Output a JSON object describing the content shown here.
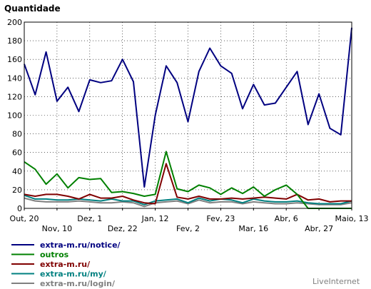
{
  "chart_data": {
    "type": "line",
    "title": "Quantidade",
    "ylim": [
      0,
      200
    ],
    "yticks": [
      0,
      20,
      40,
      60,
      80,
      100,
      120,
      140,
      160,
      180,
      200
    ],
    "grid": true,
    "x_tick_labels": [
      {
        "index": 0,
        "label": "Out, 20"
      },
      {
        "index": 3,
        "label": "Nov, 10"
      },
      {
        "index": 6,
        "label": "Dez, 1"
      },
      {
        "index": 9,
        "label": "Dez, 22"
      },
      {
        "index": 12,
        "label": "Jan, 12"
      },
      {
        "index": 15,
        "label": "Fev, 2"
      },
      {
        "index": 18,
        "label": "Fev, 23"
      },
      {
        "index": 21,
        "label": "Mar, 16"
      },
      {
        "index": 24,
        "label": "Abr, 6"
      },
      {
        "index": 27,
        "label": "Abr, 27"
      },
      {
        "index": 30,
        "label": "Maio, 13"
      }
    ],
    "n_points": 31,
    "series": [
      {
        "name": "extra-m.ru/notice/",
        "color": "#000080",
        "values": [
          155,
          122,
          168,
          115,
          130,
          104,
          138,
          135,
          137,
          160,
          136,
          23,
          100,
          153,
          135,
          93,
          147,
          172,
          153,
          145,
          107,
          133,
          111,
          113,
          130,
          147,
          90,
          123,
          86,
          79,
          194
        ]
      },
      {
        "name": "outros",
        "color": "#008000",
        "values": [
          50,
          42,
          26,
          37,
          22,
          33,
          31,
          32,
          17,
          18,
          16,
          13,
          15,
          61,
          21,
          18,
          25,
          22,
          15,
          22,
          16,
          23,
          13,
          20,
          25,
          15,
          0,
          0,
          0,
          0,
          0
        ]
      },
      {
        "name": "extra-m.ru/",
        "color": "#800000",
        "values": [
          15,
          13,
          15,
          15,
          13,
          10,
          15,
          11,
          11,
          13,
          9,
          6,
          5,
          48,
          12,
          10,
          13,
          10,
          10,
          11,
          10,
          11,
          12,
          11,
          10,
          15,
          9,
          10,
          7,
          8,
          8
        ]
      },
      {
        "name": "extra-m.ru/my/",
        "color": "#008080",
        "values": [
          14,
          10,
          10,
          9,
          9,
          10,
          9,
          8,
          10,
          8,
          8,
          4,
          8,
          9,
          10,
          6,
          11,
          8,
          10,
          9,
          6,
          10,
          8,
          7,
          7,
          8,
          6,
          5,
          5,
          5,
          8
        ]
      },
      {
        "name": "extra-m.ru/login/",
        "color": "#808080",
        "values": [
          11,
          8,
          7,
          7,
          7,
          8,
          7,
          6,
          6,
          7,
          6,
          2,
          6,
          7,
          8,
          5,
          9,
          6,
          7,
          7,
          5,
          7,
          6,
          5,
          5,
          6,
          5,
          4,
          4,
          4,
          6
        ]
      }
    ]
  },
  "watermark": "LiveInternet"
}
